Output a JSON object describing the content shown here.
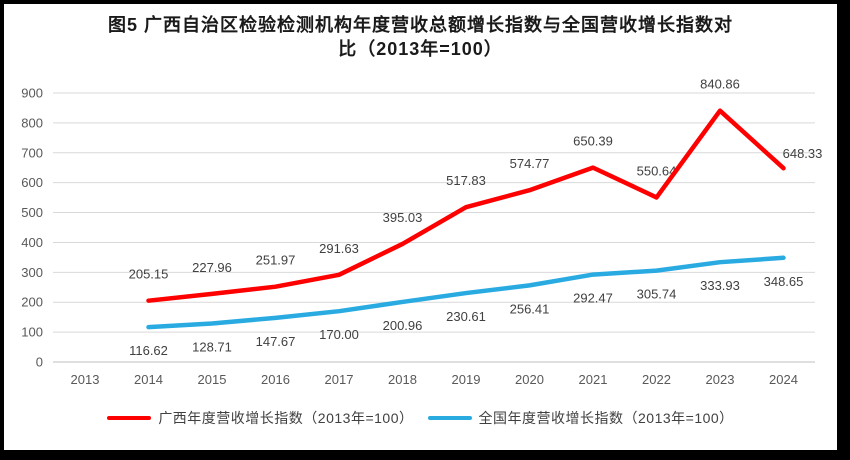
{
  "header": {
    "title_line1": "图5  广西自治区检验检测机构年度营收总额增长指数与全国营收增长指数对",
    "title_line2": "比（2013年=100）"
  },
  "chart_data": {
    "type": "line",
    "title": "图5 广西自治区检验检测机构年度营收总额增长指数与全国营收增长指数对比（2013年=100）",
    "categories": [
      "2013",
      "2014",
      "2015",
      "2016",
      "2017",
      "2018",
      "2019",
      "2020",
      "2021",
      "2022",
      "2023",
      "2024"
    ],
    "series": [
      {
        "name": "广西年度营收增长指数（2013年=100）",
        "color": "#FF0000",
        "label_position": "above",
        "values": [
          null,
          205.15,
          227.96,
          251.97,
          291.63,
          395.03,
          517.83,
          574.77,
          650.39,
          550.64,
          840.86,
          648.33
        ]
      },
      {
        "name": "全国年度营收增长指数（2013年=100）",
        "color": "#29ABE2",
        "label_position": "below",
        "values": [
          null,
          116.62,
          128.71,
          147.67,
          170.0,
          200.96,
          230.61,
          256.41,
          292.47,
          305.74,
          333.93,
          348.65
        ]
      }
    ],
    "ylim": [
      0,
      900
    ],
    "yticks": [
      0,
      100,
      200,
      300,
      400,
      500,
      600,
      700,
      800,
      900
    ],
    "value_decimals": 2,
    "grid": true,
    "legend_position": "bottom",
    "colors": {
      "gridline": "#D9D9D9",
      "axis_line": "#BFBFBF",
      "axis_text": "#595959",
      "label_text": "#404040"
    }
  }
}
